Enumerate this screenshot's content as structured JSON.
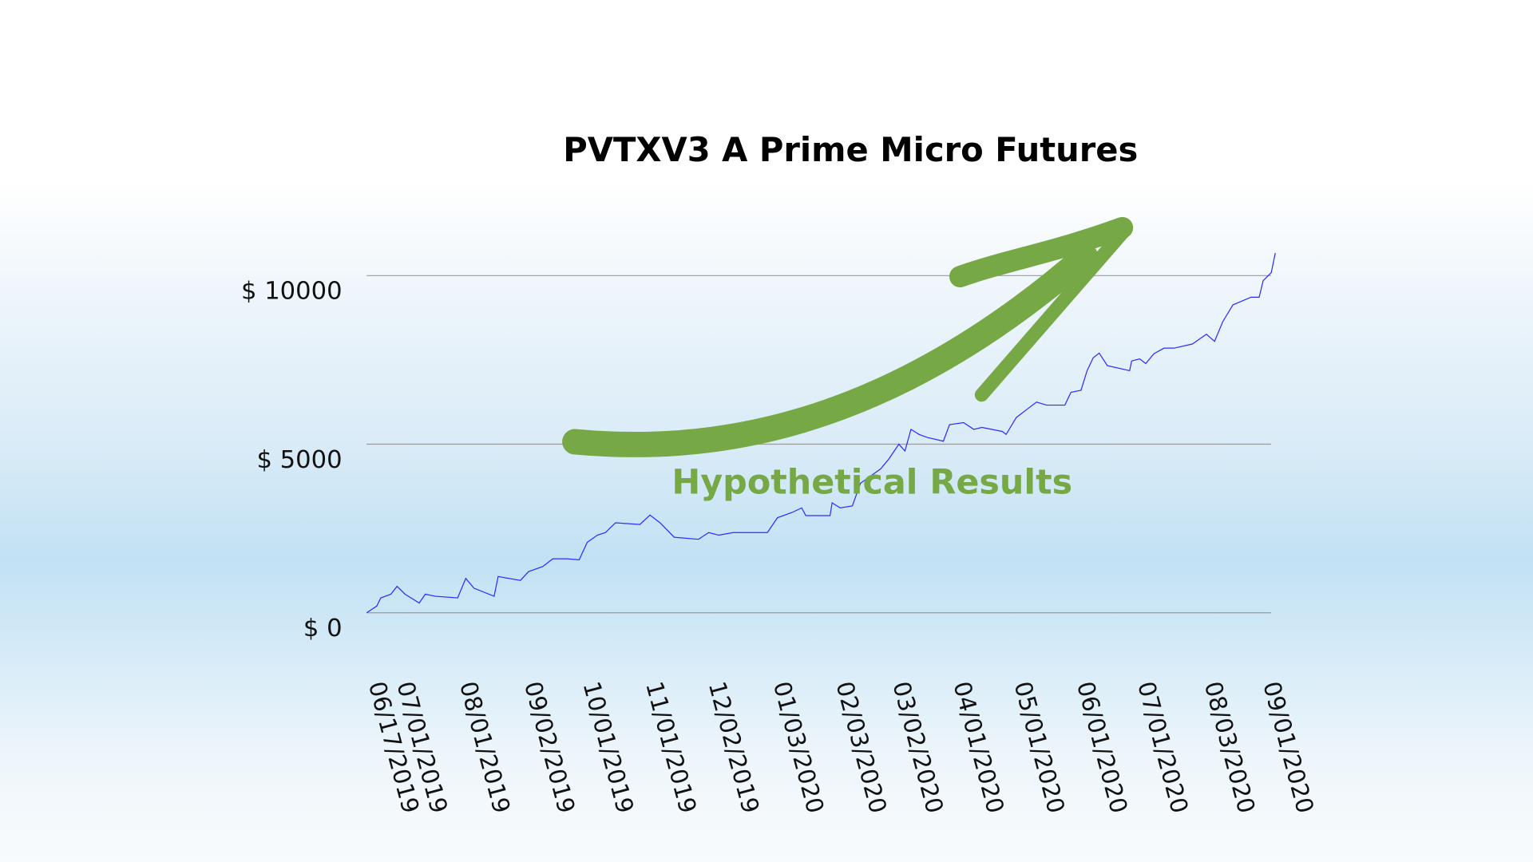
{
  "chart_data": {
    "type": "line",
    "title": "PVTXV3 A Prime Micro Futures",
    "annotation": "Hypothetical Results",
    "xlabel": "",
    "ylabel": "",
    "ylim": [
      0,
      10000
    ],
    "y_ticks": [
      {
        "value": 0,
        "label": "$  0"
      },
      {
        "value": 5000,
        "label": "$  5000"
      },
      {
        "value": 10000,
        "label": "$  10000"
      }
    ],
    "x_ticks": [
      "06/17/2019",
      "07/01/2019",
      "08/01/2019",
      "09/02/2019",
      "10/01/2019",
      "11/01/2019",
      "12/02/2019",
      "01/03/2020",
      "02/03/2020",
      "03/02/2020",
      "04/01/2020",
      "05/01/2020",
      "06/01/2020",
      "07/01/2020",
      "08/03/2020",
      "09/01/2020"
    ],
    "grid": "horizontal",
    "legend": "none",
    "colors": {
      "line": "#2b2bff",
      "arrow": "#76a845",
      "annotation": "#76a845",
      "grid": "#9a9a9a"
    },
    "series": [
      {
        "points": [
          [
            "2019-06-17",
            0
          ],
          [
            "2019-06-22",
            200
          ],
          [
            "2019-06-24",
            440
          ],
          [
            "2019-06-29",
            550
          ],
          [
            "2019-07-02",
            785
          ],
          [
            "2019-07-06",
            550
          ],
          [
            "2019-07-13",
            290
          ],
          [
            "2019-07-16",
            550
          ],
          [
            "2019-07-21",
            490
          ],
          [
            "2019-08-01",
            440
          ],
          [
            "2019-08-05",
            1020
          ],
          [
            "2019-08-09",
            730
          ],
          [
            "2019-08-19",
            490
          ],
          [
            "2019-08-21",
            1075
          ],
          [
            "2019-09-01",
            960
          ],
          [
            "2019-09-05",
            1220
          ],
          [
            "2019-09-12",
            1370
          ],
          [
            "2019-09-17",
            1600
          ],
          [
            "2019-09-24",
            1600
          ],
          [
            "2019-09-30",
            1570
          ],
          [
            "2019-10-04",
            2090
          ],
          [
            "2019-10-09",
            2300
          ],
          [
            "2019-10-13",
            2380
          ],
          [
            "2019-10-18",
            2670
          ],
          [
            "2019-10-30",
            2620
          ],
          [
            "2019-11-04",
            2900
          ],
          [
            "2019-11-09",
            2670
          ],
          [
            "2019-11-16",
            2240
          ],
          [
            "2019-11-28",
            2180
          ],
          [
            "2019-12-03",
            2380
          ],
          [
            "2019-12-08",
            2300
          ],
          [
            "2019-12-15",
            2380
          ],
          [
            "2020-01-01",
            2380
          ],
          [
            "2020-01-06",
            2820
          ],
          [
            "2020-01-13",
            2970
          ],
          [
            "2020-01-18",
            3110
          ],
          [
            "2020-01-20",
            2880
          ],
          [
            "2020-02-01",
            2880
          ],
          [
            "2020-02-02",
            3260
          ],
          [
            "2020-02-06",
            3110
          ],
          [
            "2020-02-12",
            3170
          ],
          [
            "2020-02-16",
            3840
          ],
          [
            "2020-02-26",
            4270
          ],
          [
            "2020-03-01",
            4560
          ],
          [
            "2020-03-06",
            5000
          ],
          [
            "2020-03-09",
            4800
          ],
          [
            "2020-03-12",
            5440
          ],
          [
            "2020-03-16",
            5290
          ],
          [
            "2020-03-20",
            5200
          ],
          [
            "2020-03-28",
            5090
          ],
          [
            "2020-03-31",
            5580
          ],
          [
            "2020-04-07",
            5640
          ],
          [
            "2020-04-12",
            5440
          ],
          [
            "2020-04-16",
            5500
          ],
          [
            "2020-04-26",
            5380
          ],
          [
            "2020-04-28",
            5290
          ],
          [
            "2020-05-03",
            5790
          ],
          [
            "2020-05-08",
            6020
          ],
          [
            "2020-05-13",
            6250
          ],
          [
            "2020-05-18",
            6160
          ],
          [
            "2020-05-27",
            6160
          ],
          [
            "2020-05-30",
            6540
          ],
          [
            "2020-06-04",
            6600
          ],
          [
            "2020-06-07",
            7180
          ],
          [
            "2020-06-10",
            7560
          ],
          [
            "2020-06-13",
            7700
          ],
          [
            "2020-06-17",
            7330
          ],
          [
            "2020-06-28",
            7180
          ],
          [
            "2020-06-29",
            7470
          ],
          [
            "2020-07-03",
            7530
          ],
          [
            "2020-07-06",
            7390
          ],
          [
            "2020-07-10",
            7680
          ],
          [
            "2020-07-15",
            7850
          ],
          [
            "2020-07-20",
            7850
          ],
          [
            "2020-07-29",
            7970
          ],
          [
            "2020-08-05",
            8260
          ],
          [
            "2020-08-09",
            8050
          ],
          [
            "2020-08-13",
            8630
          ],
          [
            "2020-08-18",
            9130
          ],
          [
            "2020-08-27",
            9360
          ],
          [
            "2020-08-31",
            9360
          ],
          [
            "2020-09-02",
            9850
          ],
          [
            "2020-09-06",
            10090
          ],
          [
            "2020-09-08",
            10670
          ]
        ]
      }
    ]
  }
}
